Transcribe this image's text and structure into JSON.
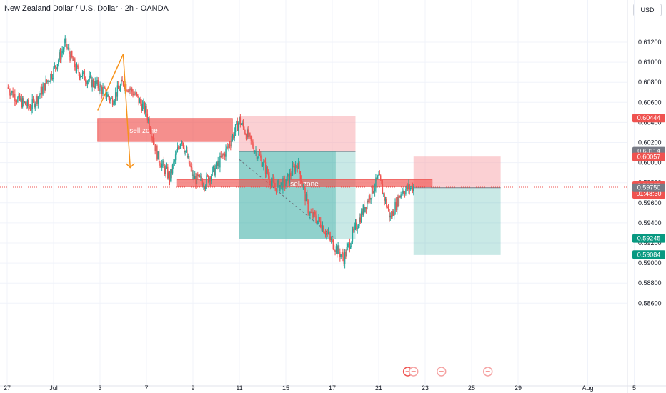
{
  "header": {
    "title": "New Zealand Dollar / U.S. Dollar · 2h · OANDA",
    "currency": "USD"
  },
  "colors": {
    "up": "#26a69a",
    "down": "#ef5350",
    "sell_zone": "#ef5350",
    "arrow": "#f7931a",
    "target": "#26a69a",
    "stop": "#f7a1a8",
    "gray_tag": "#787b86"
  },
  "chart_data": {
    "type": "candlestick",
    "symbol": "NZDUSD",
    "interval": "2h",
    "ylim": [
      0.586,
      0.6135
    ],
    "y_ticks": [
      {
        "value": 0.612,
        "label": "0.61200"
      },
      {
        "value": 0.61,
        "label": "0.61000"
      },
      {
        "value": 0.608,
        "label": "0.60800"
      },
      {
        "value": 0.606,
        "label": "0.60600"
      },
      {
        "value": 0.604,
        "label": "0.60400"
      },
      {
        "value": 0.602,
        "label": "0.60200"
      },
      {
        "value": 0.6,
        "label": "0.60000"
      },
      {
        "value": 0.598,
        "label": "0.59800"
      },
      {
        "value": 0.596,
        "label": "0.59600"
      },
      {
        "value": 0.594,
        "label": "0.59400"
      },
      {
        "value": 0.592,
        "label": "0.59200"
      },
      {
        "value": 0.59,
        "label": "0.59000"
      },
      {
        "value": 0.588,
        "label": "0.58800"
      },
      {
        "value": 0.586,
        "label": "0.58600"
      }
    ],
    "x_ticks": [
      {
        "day": 0,
        "label": "27"
      },
      {
        "day": 4,
        "label": "Jul"
      },
      {
        "day": 8,
        "label": "3"
      },
      {
        "day": 12,
        "label": "7"
      },
      {
        "day": 16,
        "label": "9"
      },
      {
        "day": 20,
        "label": "11"
      },
      {
        "day": 24,
        "label": "15"
      },
      {
        "day": 28,
        "label": "17"
      },
      {
        "day": 32,
        "label": "21"
      },
      {
        "day": 36,
        "label": "23"
      },
      {
        "day": 40,
        "label": "25"
      },
      {
        "day": 44,
        "label": "29"
      },
      {
        "day": 50,
        "label": "Aug"
      },
      {
        "day": 54,
        "label": "5"
      }
    ],
    "price_path": [
      [
        0,
        0.6075
      ],
      [
        1,
        0.6062
      ],
      [
        2,
        0.6055
      ],
      [
        3,
        0.6072
      ],
      [
        4,
        0.6092
      ],
      [
        5,
        0.6118
      ],
      [
        6,
        0.6092
      ],
      [
        7,
        0.6082
      ],
      [
        8,
        0.6075
      ],
      [
        9,
        0.6062
      ],
      [
        10,
        0.608
      ],
      [
        11,
        0.6068
      ],
      [
        12,
        0.605
      ],
      [
        13,
        0.6005
      ],
      [
        14,
        0.5985
      ],
      [
        15,
        0.6025
      ],
      [
        16,
        0.5985
      ],
      [
        17,
        0.598
      ],
      [
        18,
        0.5995
      ],
      [
        19,
        0.6015
      ],
      [
        20,
        0.6042
      ],
      [
        21,
        0.602
      ],
      [
        22,
        0.6
      ],
      [
        23,
        0.5975
      ],
      [
        24,
        0.598
      ],
      [
        25,
        0.6
      ],
      [
        26,
        0.595
      ],
      [
        27,
        0.594
      ],
      [
        28,
        0.592
      ],
      [
        29,
        0.5905
      ],
      [
        30,
        0.5935
      ],
      [
        31,
        0.5962
      ],
      [
        32,
        0.5985
      ],
      [
        33,
        0.5945
      ],
      [
        34,
        0.5972
      ],
      [
        35,
        0.5976
      ]
    ],
    "annotations": {
      "sell_zones": [
        {
          "label": "sell zone",
          "from_day": 7.8,
          "to_day": 19.4,
          "top": 0.6044,
          "bottom": 0.6021
        },
        {
          "label": "sell zone",
          "from_day": 14.6,
          "to_day": 36.6,
          "top": 0.5983,
          "bottom": 0.5976
        }
      ],
      "short_position_1": {
        "from_day": 20.0,
        "to_day": 30.0,
        "entry": 0.6011,
        "stop": 0.6046,
        "target": 0.5924
      },
      "short_position_2": {
        "from_day": 35.0,
        "to_day": 42.5,
        "entry": 0.5975,
        "stop": 0.6006,
        "target": 0.5908
      },
      "arrow_points": [
        [
          7.8,
          0.6052
        ],
        [
          10.0,
          0.6108
        ],
        [
          10.6,
          0.5995
        ]
      ]
    },
    "price_tags": [
      {
        "label": "0.60444",
        "value": 0.60444,
        "color": "#ef5350"
      },
      {
        "label": "0.60114",
        "value": 0.60114,
        "color": "#787b86"
      },
      {
        "label": "0.60057",
        "value": 0.60057,
        "color": "#ef5350"
      },
      {
        "label": "0.59755",
        "sub": "01:48:30",
        "value": 0.59755,
        "color": "#ef5350"
      },
      {
        "label": "0.59750",
        "value": 0.5975,
        "color": "#787b86"
      },
      {
        "label": "0.59245",
        "value": 0.59245,
        "color": "#089981"
      },
      {
        "label": "0.59084",
        "value": 0.59084,
        "color": "#089981"
      }
    ],
    "event_days": [
      34.5,
      35.0,
      37.4,
      41.4
    ]
  }
}
